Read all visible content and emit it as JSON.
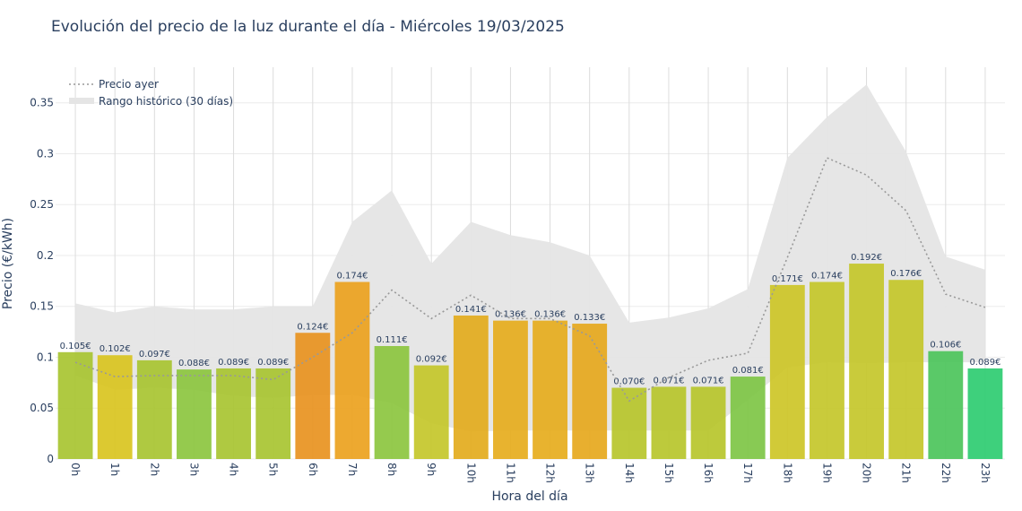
{
  "chart_title": "Evolución del precio de la luz durante el día - Miércoles 19/03/2025",
  "chart_data": {
    "type": "bar",
    "title": "Evolución del precio de la luz durante el día - Miércoles 19/03/2025",
    "xlabel": "Hora del día",
    "ylabel": "Precio (€/kWh)",
    "ylim": [
      0,
      0.385
    ],
    "yticks": [
      0,
      0.05,
      0.1,
      0.15,
      0.2,
      0.25,
      0.3,
      0.35
    ],
    "ytick_labels": [
      "0",
      "0.05",
      "0.1",
      "0.15",
      "0.2",
      "0.25",
      "0.3",
      "0.35"
    ],
    "categories": [
      "0h",
      "1h",
      "2h",
      "3h",
      "4h",
      "5h",
      "6h",
      "7h",
      "8h",
      "9h",
      "10h",
      "11h",
      "12h",
      "13h",
      "14h",
      "15h",
      "16h",
      "17h",
      "18h",
      "19h",
      "20h",
      "21h",
      "22h",
      "23h"
    ],
    "values": [
      0.105,
      0.102,
      0.097,
      0.088,
      0.089,
      0.089,
      0.124,
      0.174,
      0.111,
      0.092,
      0.141,
      0.136,
      0.136,
      0.133,
      0.07,
      0.071,
      0.071,
      0.081,
      0.171,
      0.174,
      0.192,
      0.176,
      0.106,
      0.089
    ],
    "bar_labels": [
      "0.105€",
      "0.102€",
      "0.097€",
      "0.088€",
      "0.089€",
      "0.089€",
      "0.124€",
      "0.174€",
      "0.111€",
      "0.092€",
      "0.141€",
      "0.136€",
      "0.136€",
      "0.133€",
      "0.070€",
      "0.071€",
      "0.071€",
      "0.081€",
      "0.171€",
      "0.174€",
      "0.192€",
      "0.176€",
      "0.106€",
      "0.089€"
    ],
    "bar_colors": [
      "#a8c431",
      "#d9c420",
      "#a8c431",
      "#8cc63f",
      "#a8c431",
      "#a8c431",
      "#e8921f",
      "#eba21e",
      "#8cc63f",
      "#c4c72a",
      "#e3ab1d",
      "#e6ad1d",
      "#e6ad1d",
      "#e6a81d",
      "#b7c62b",
      "#b7c62b",
      "#b7c62b",
      "#7ec645",
      "#cdc627",
      "#c4c72a",
      "#c4c72a",
      "#c4c72a",
      "#4cc45b",
      "#2ecc71"
    ],
    "series": [
      {
        "name": "Precio ayer",
        "style": "dotted",
        "color": "#999999",
        "values": [
          0.095,
          0.081,
          0.082,
          0.082,
          0.082,
          0.078,
          0.1,
          0.124,
          0.166,
          0.138,
          0.161,
          0.138,
          0.138,
          0.121,
          0.057,
          0.08,
          0.097,
          0.104,
          0.198,
          0.296,
          0.279,
          0.244,
          0.162,
          0.149
        ]
      },
      {
        "name": "Rango histórico (30 días)",
        "style": "band",
        "color": "#e5e5e5",
        "upper": [
          0.153,
          0.144,
          0.15,
          0.147,
          0.147,
          0.15,
          0.15,
          0.233,
          0.264,
          0.192,
          0.233,
          0.22,
          0.213,
          0.2,
          0.134,
          0.139,
          0.148,
          0.167,
          0.296,
          0.336,
          0.368,
          0.302,
          0.199,
          0.186
        ],
        "lower": [
          0.082,
          0.068,
          0.07,
          0.068,
          0.062,
          0.06,
          0.063,
          0.063,
          0.055,
          0.035,
          0.027,
          0.028,
          0.028,
          0.028,
          0.028,
          0.028,
          0.028,
          0.058,
          0.09,
          0.095,
          0.094,
          0.095,
          0.095,
          0.095
        ]
      }
    ],
    "legend_position": "top-left",
    "grid": true
  }
}
